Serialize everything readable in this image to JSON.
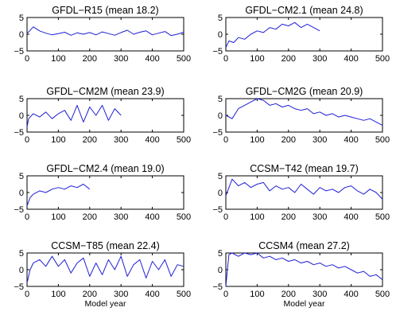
{
  "chart_data": [
    {
      "type": "line",
      "title": "GFDL−R15 (mean 18.2)",
      "xlim": [
        0,
        500
      ],
      "ylim": [
        -5,
        5
      ],
      "xticks": [
        "0",
        "100",
        "200",
        "300",
        "400",
        "500"
      ],
      "yticks": [
        "5",
        "0",
        "−5"
      ],
      "xlabel": "",
      "series": [
        {
          "x": [
            0,
            20,
            40,
            60,
            80,
            100,
            120,
            140,
            160,
            180,
            200,
            220,
            240,
            260,
            280,
            300,
            320,
            340,
            360,
            380,
            400,
            420,
            440,
            460,
            480,
            500
          ],
          "values": [
            0.2,
            2.2,
            1.0,
            0.3,
            -0.2,
            0.2,
            0.6,
            -0.3,
            0.4,
            0.0,
            0.5,
            -0.2,
            0.7,
            0.2,
            -0.3,
            0.5,
            1.2,
            0.0,
            0.6,
            1.0,
            -0.2,
            0.3,
            0.8,
            -0.4,
            0.0,
            0.6
          ]
        }
      ]
    },
    {
      "type": "line",
      "title": "GFDL−CM2.1 (mean 24.8)",
      "xlim": [
        0,
        500
      ],
      "ylim": [
        -5,
        5
      ],
      "xticks": [
        "0",
        "100",
        "200",
        "300",
        "400",
        "500"
      ],
      "yticks": [
        "5",
        "0",
        "−5"
      ],
      "xlabel": "",
      "series": [
        {
          "x": [
            0,
            10,
            25,
            40,
            60,
            80,
            100,
            120,
            140,
            160,
            180,
            200,
            220,
            240,
            260,
            280,
            300
          ],
          "values": [
            -4.0,
            -2.0,
            -2.5,
            -1.0,
            -1.5,
            0.0,
            1.0,
            0.5,
            2.0,
            1.5,
            3.0,
            2.5,
            3.5,
            2.0,
            3.0,
            2.0,
            1.0
          ]
        }
      ]
    },
    {
      "type": "line",
      "title": "GFDL−CM2M (mean 23.9)",
      "xlim": [
        0,
        500
      ],
      "ylim": [
        -5,
        5
      ],
      "xticks": [
        "0",
        "100",
        "200",
        "300",
        "400",
        "500"
      ],
      "yticks": [
        "5",
        "0",
        "−5"
      ],
      "xlabel": "",
      "series": [
        {
          "x": [
            0,
            5,
            20,
            40,
            60,
            80,
            100,
            120,
            140,
            160,
            180,
            200,
            220,
            240,
            260,
            280,
            300
          ],
          "values": [
            -3.5,
            -1.0,
            0.5,
            -0.5,
            1.0,
            -1.0,
            0.5,
            1.5,
            -1.5,
            3.0,
            -2.0,
            2.5,
            0.0,
            3.0,
            -1.5,
            2.0,
            0.0
          ]
        }
      ]
    },
    {
      "type": "line",
      "title": "GFDL−CM2G (mean 20.9)",
      "xlim": [
        0,
        500
      ],
      "ylim": [
        -5,
        5
      ],
      "xticks": [
        "0",
        "100",
        "200",
        "300",
        "400",
        "500"
      ],
      "yticks": [
        "5",
        "0",
        "−5"
      ],
      "xlabel": "",
      "series": [
        {
          "x": [
            0,
            20,
            40,
            60,
            80,
            100,
            120,
            140,
            160,
            180,
            200,
            220,
            240,
            260,
            280,
            300,
            320,
            340,
            360,
            380,
            400,
            420,
            440,
            460,
            480,
            500
          ],
          "values": [
            0.0,
            -1.0,
            2.0,
            3.0,
            4.0,
            5.0,
            4.5,
            3.0,
            3.5,
            2.5,
            3.0,
            2.0,
            1.5,
            2.0,
            0.5,
            1.0,
            0.0,
            0.5,
            -0.5,
            0.0,
            -0.5,
            -1.0,
            -1.5,
            -1.0,
            -2.0,
            -3.0
          ]
        }
      ]
    },
    {
      "type": "line",
      "title": "GFDL−CM2.4 (mean 19.0)",
      "xlim": [
        0,
        500
      ],
      "ylim": [
        -5,
        5
      ],
      "xticks": [
        "0",
        "100",
        "200",
        "300",
        "400",
        "500"
      ],
      "yticks": [
        "5",
        "0",
        "−5"
      ],
      "xlabel": "",
      "series": [
        {
          "x": [
            0,
            10,
            20,
            40,
            60,
            80,
            100,
            120,
            140,
            160,
            180,
            200
          ],
          "values": [
            -4.0,
            -1.5,
            -0.5,
            0.5,
            0.0,
            1.0,
            1.5,
            1.0,
            2.0,
            1.5,
            2.5,
            1.0
          ]
        }
      ]
    },
    {
      "type": "line",
      "title": "CCSM−T42 (mean 19.7)",
      "xlim": [
        0,
        500
      ],
      "ylim": [
        -5,
        5
      ],
      "xticks": [
        "0",
        "100",
        "200",
        "300",
        "400",
        "500"
      ],
      "yticks": [
        "5",
        "0",
        "−5"
      ],
      "xlabel": "",
      "series": [
        {
          "x": [
            0,
            20,
            40,
            60,
            80,
            100,
            120,
            140,
            160,
            180,
            200,
            220,
            240,
            260,
            280,
            300,
            320,
            340,
            360,
            380,
            400,
            420,
            440,
            460,
            480,
            500
          ],
          "values": [
            -1.0,
            4.0,
            2.0,
            3.0,
            1.5,
            2.5,
            3.0,
            0.5,
            2.0,
            1.0,
            1.5,
            0.0,
            2.5,
            1.0,
            -0.5,
            1.5,
            0.5,
            1.0,
            0.0,
            1.5,
            2.0,
            0.5,
            -0.5,
            1.0,
            0.0,
            -2.0
          ]
        }
      ]
    },
    {
      "type": "line",
      "title": "CCSM−T85 (mean 22.4)",
      "xlim": [
        0,
        500
      ],
      "ylim": [
        -5,
        5
      ],
      "xticks": [
        "0",
        "100",
        "200",
        "300",
        "400",
        "500"
      ],
      "yticks": [
        "5",
        "0",
        "−5"
      ],
      "xlabel": "Model year",
      "series": [
        {
          "x": [
            0,
            10,
            20,
            40,
            60,
            80,
            100,
            120,
            140,
            160,
            180,
            200,
            220,
            240,
            260,
            280,
            300,
            320,
            340,
            360,
            380,
            400,
            420,
            440,
            460,
            480,
            500
          ],
          "values": [
            -4.0,
            0.0,
            2.0,
            3.0,
            1.0,
            4.0,
            1.0,
            3.0,
            -1.0,
            2.0,
            3.5,
            -2.0,
            2.0,
            -1.5,
            3.0,
            0.0,
            4.0,
            -2.0,
            1.5,
            3.0,
            -2.5,
            2.5,
            0.0,
            3.0,
            -2.0,
            1.5,
            1.0
          ]
        }
      ]
    },
    {
      "type": "line",
      "title": "CCSM4 (mean 27.2)",
      "xlim": [
        0,
        500
      ],
      "ylim": [
        -5,
        5
      ],
      "xticks": [
        "0",
        "100",
        "200",
        "300",
        "400",
        "500"
      ],
      "yticks": [
        "5",
        "0",
        "−5"
      ],
      "xlabel": "Model year",
      "series": [
        {
          "x": [
            0,
            5,
            10,
            20,
            40,
            60,
            80,
            100,
            120,
            140,
            160,
            180,
            200,
            220,
            240,
            260,
            280,
            300,
            320,
            340,
            360,
            380,
            400,
            420,
            440,
            460,
            480,
            500
          ],
          "values": [
            -5.0,
            0.0,
            4.5,
            5.0,
            4.0,
            5.0,
            4.5,
            5.0,
            3.5,
            4.0,
            3.0,
            3.5,
            2.5,
            3.0,
            2.0,
            2.5,
            1.5,
            2.0,
            1.0,
            1.5,
            0.5,
            1.0,
            0.0,
            -1.0,
            -0.5,
            -2.0,
            -1.5,
            -3.0
          ]
        }
      ]
    }
  ]
}
